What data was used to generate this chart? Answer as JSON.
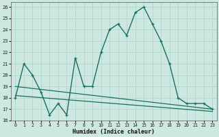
{
  "xlabel": "Humidex (Indice chaleur)",
  "xlim": [
    -0.5,
    23.5
  ],
  "ylim": [
    16,
    26.4
  ],
  "yticks": [
    16,
    17,
    18,
    19,
    20,
    21,
    22,
    23,
    24,
    25,
    26
  ],
  "xticks": [
    0,
    1,
    2,
    3,
    4,
    5,
    6,
    7,
    8,
    9,
    10,
    11,
    12,
    13,
    14,
    15,
    16,
    17,
    18,
    19,
    20,
    21,
    22,
    23
  ],
  "bg_color": "#cce8e0",
  "line_color": "#1a6e5e",
  "grid_color": "#b0d8ce",
  "series1_x": [
    0,
    1,
    2,
    3,
    4,
    5,
    6,
    7,
    8,
    9,
    10,
    11,
    12,
    13,
    14,
    15,
    16,
    17,
    18,
    19,
    20,
    21,
    22,
    23
  ],
  "series1_y": [
    18,
    21,
    20,
    18.5,
    16.5,
    17.5,
    16.5,
    21.5,
    19,
    19,
    22,
    24,
    24.5,
    23.5,
    25.5,
    26,
    24.5,
    23,
    21,
    18,
    17.5,
    17.5,
    17.5,
    17
  ],
  "series2_x": [
    0,
    23
  ],
  "series2_y": [
    19.0,
    17.0
  ],
  "series3_x": [
    0,
    23
  ],
  "series3_y": [
    18.2,
    16.8
  ]
}
